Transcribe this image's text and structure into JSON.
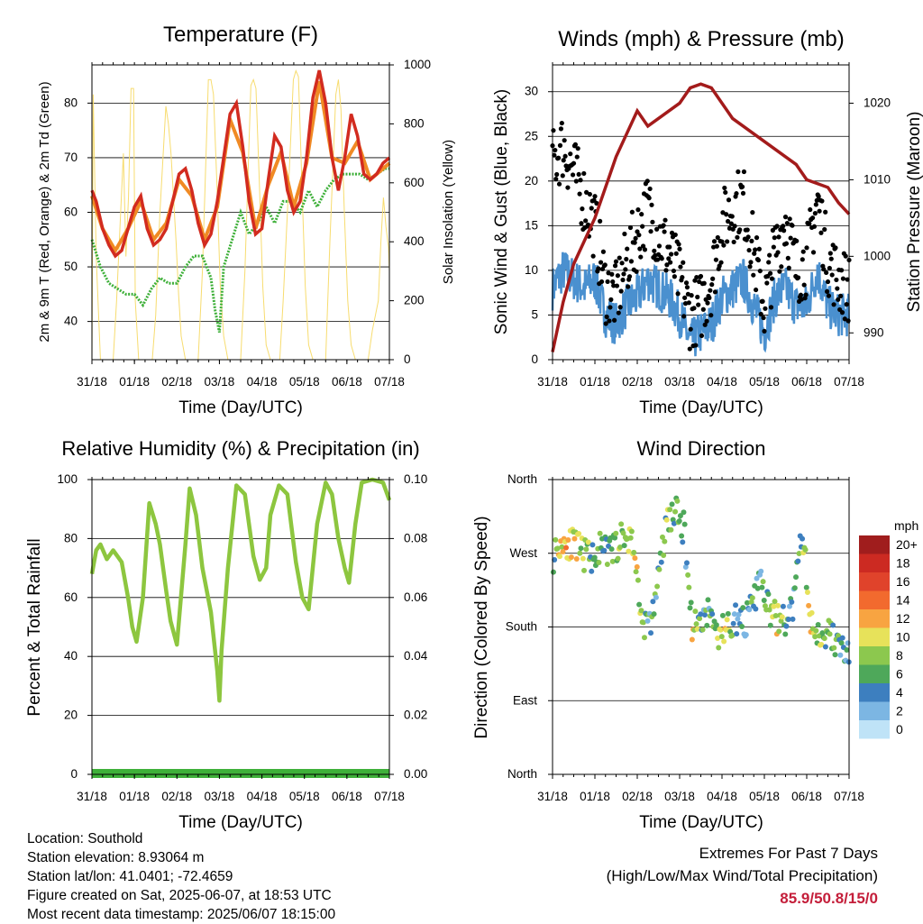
{
  "chart_data": [
    {
      "type": "line",
      "title": "Temperature (F)",
      "xlabel": "Time (Day/UTC)",
      "ylabel": "2m & 9m T (Red, Orange) & 2m Td (Green)",
      "y2label": "Solar Insolation (Yellow)",
      "x_ticks": [
        "31/18",
        "01/18",
        "02/18",
        "03/18",
        "04/18",
        "05/18",
        "06/18",
        "07/18"
      ],
      "ylim": [
        33,
        87
      ],
      "y_ticks": [
        40,
        50,
        60,
        70,
        80
      ],
      "y2lim": [
        0,
        1000
      ],
      "y2_ticks": [
        0,
        200,
        400,
        600,
        800,
        1000
      ],
      "grid": true,
      "colors": {
        "t2m": "#d22b1f",
        "t9m": "#f08a24",
        "td2m": "#3fb03a",
        "solar": "#f7dc6f"
      },
      "series": [
        {
          "key": "t2m",
          "x": [
            0,
            0.1,
            0.25,
            0.4,
            0.55,
            0.7,
            0.85,
            1,
            1.15,
            1.3,
            1.45,
            1.6,
            1.75,
            1.9,
            2.05,
            2.2,
            2.35,
            2.5,
            2.65,
            2.8,
            2.95,
            3.1,
            3.25,
            3.4,
            3.55,
            3.7,
            3.85,
            4,
            4.15,
            4.3,
            4.45,
            4.6,
            4.75,
            4.9,
            5.05,
            5.2,
            5.35,
            5.5,
            5.65,
            5.8,
            5.95,
            6.1,
            6.25,
            6.4,
            6.55,
            6.7,
            6.85,
            7
          ],
          "values": [
            64,
            62,
            57,
            54,
            52,
            53,
            57,
            61,
            63,
            57,
            54,
            55,
            57,
            62,
            67,
            68,
            64,
            58,
            54,
            56,
            62,
            70,
            78,
            80,
            72,
            62,
            56,
            57,
            66,
            74,
            72,
            64,
            60,
            62,
            70,
            81,
            86,
            80,
            70,
            64,
            70,
            78,
            74,
            67,
            66,
            67,
            69,
            70
          ]
        },
        {
          "key": "t9m",
          "x": [
            0,
            0.25,
            0.55,
            0.85,
            1.15,
            1.45,
            1.75,
            2.05,
            2.35,
            2.65,
            2.95,
            3.25,
            3.55,
            3.85,
            4.15,
            4.45,
            4.75,
            5.05,
            5.35,
            5.65,
            5.95,
            6.25,
            6.55,
            6.85,
            7
          ],
          "values": [
            63,
            57,
            53,
            57,
            62,
            55,
            58,
            66,
            63,
            55,
            61,
            77,
            71,
            57,
            65,
            71,
            61,
            69,
            84,
            70,
            69,
            73,
            66,
            68,
            69
          ]
        },
        {
          "key": "td2m",
          "x": [
            0,
            0.2,
            0.4,
            0.6,
            0.8,
            1,
            1.2,
            1.4,
            1.6,
            1.8,
            2,
            2.2,
            2.4,
            2.6,
            2.8,
            2.9,
            3,
            3.1,
            3.3,
            3.5,
            3.7,
            3.9,
            4.1,
            4.3,
            4.5,
            4.7,
            4.9,
            5.1,
            5.3,
            5.5,
            5.7,
            5.9,
            6.1,
            6.3,
            6.5,
            6.7,
            6.9,
            7
          ],
          "values": [
            55,
            50,
            47,
            46,
            45,
            45,
            43,
            46,
            48,
            47,
            47,
            50,
            52,
            52,
            48,
            42,
            38,
            50,
            55,
            60,
            56,
            58,
            61,
            58,
            62,
            62,
            60,
            64,
            61,
            64,
            66,
            67,
            67,
            67,
            66,
            67,
            68,
            68
          ]
        },
        {
          "key": "solar",
          "x": [
            0,
            0.03,
            0.1,
            0.2,
            0.26,
            0.34,
            0.4,
            0.5,
            0.58,
            0.74,
            0.8,
            0.86,
            0.92,
            0.98,
            1.02,
            1.1,
            1.2,
            1.26,
            1.34,
            1.42,
            1.5,
            1.6,
            1.74,
            1.8,
            1.86,
            1.92,
            1.98,
            2.04,
            2.1,
            2.2,
            2.26,
            2.34,
            2.42,
            2.5,
            2.6,
            2.74,
            2.8,
            2.86,
            2.94,
            3.02,
            3.1,
            3.2,
            3.26,
            3.34,
            3.42,
            3.5,
            3.6,
            3.74,
            3.8,
            3.86,
            3.94,
            4.02,
            4.1,
            4.2,
            4.26,
            4.34,
            4.42,
            4.5,
            4.6,
            4.74,
            4.8,
            4.86,
            4.94,
            5.02,
            5.1,
            5.2,
            5.26,
            5.34,
            5.42,
            5.5,
            5.6,
            5.74,
            5.8,
            5.86,
            5.94,
            6.02,
            6.1,
            6.2,
            6.26,
            6.34,
            6.42,
            6.5,
            6.6,
            6.74,
            6.8,
            6.86,
            6.92,
            6.98,
            7
          ],
          "values": [
            0,
            900,
            350,
            0,
            0,
            0,
            0,
            0,
            200,
            700,
            350,
            550,
            920,
            920,
            200,
            0,
            0,
            0,
            0,
            0,
            150,
            500,
            860,
            800,
            700,
            550,
            400,
            220,
            80,
            0,
            0,
            0,
            0,
            0,
            300,
            950,
            950,
            900,
            600,
            250,
            80,
            0,
            0,
            0,
            0,
            0,
            300,
            930,
            950,
            920,
            600,
            250,
            50,
            0,
            0,
            0,
            0,
            200,
            500,
            950,
            980,
            960,
            600,
            250,
            50,
            0,
            0,
            0,
            0,
            0,
            400,
            900,
            950,
            850,
            500,
            200,
            50,
            0,
            0,
            0,
            0,
            0,
            100,
            200,
            400,
            550,
            450,
            380,
            300
          ]
        }
      ]
    },
    {
      "type": "scatter",
      "title": "Winds (mph) & Pressure (mb)",
      "xlabel": "Time (Day/UTC)",
      "ylabel": "Sonic Wind & Gust (Blue, Black)",
      "y2label": "Station Pressure (Maroon)",
      "x_ticks": [
        "31/18",
        "01/18",
        "02/18",
        "03/18",
        "04/18",
        "05/18",
        "06/18",
        "07/18"
      ],
      "ylim": [
        0,
        33
      ],
      "y_ticks": [
        0,
        5,
        10,
        15,
        20,
        25,
        30
      ],
      "y2lim": [
        986.5,
        1025
      ],
      "y2_ticks": [
        990,
        1000,
        1010,
        1020
      ],
      "grid": true,
      "colors": {
        "wind": "#4a90cf",
        "gust": "#000000",
        "pressure": "#a31b1b"
      },
      "series": [
        {
          "key": "wind",
          "x": [
            0,
            0.25,
            0.5,
            0.75,
            1,
            1.25,
            1.5,
            1.75,
            2,
            2.25,
            2.5,
            2.75,
            3,
            3.25,
            3.5,
            3.75,
            4,
            4.25,
            4.5,
            4.75,
            5,
            5.25,
            5.5,
            5.75,
            6,
            6.25,
            6.5,
            6.75,
            7
          ],
          "values": [
            8,
            10,
            9,
            8,
            9,
            5,
            4,
            6,
            7,
            9,
            8,
            7,
            5,
            2,
            3,
            4,
            7,
            8,
            9,
            6,
            3,
            7,
            8,
            6,
            6,
            10,
            6,
            5,
            5
          ]
        },
        {
          "key": "gust",
          "x": [
            0,
            0.25,
            0.5,
            0.75,
            1,
            1.25,
            1.5,
            1.75,
            2,
            2.25,
            2.5,
            2.75,
            3,
            3.25,
            3.5,
            3.75,
            4,
            4.25,
            4.5,
            4.75,
            5,
            5.25,
            5.5,
            5.75,
            6,
            6.25,
            6.5,
            6.75,
            7
          ],
          "values": [
            22,
            24,
            21,
            18,
            15,
            8,
            7,
            11,
            14,
            17,
            14,
            12,
            9,
            5,
            6,
            9,
            15,
            17,
            18,
            12,
            6,
            12,
            16,
            10,
            11,
            18,
            11,
            9,
            8
          ]
        },
        {
          "key": "pressure",
          "x": [
            0,
            0.25,
            0.5,
            0.75,
            1,
            1.25,
            1.5,
            1.75,
            2,
            2.25,
            2.5,
            2.75,
            3,
            3.25,
            3.5,
            3.75,
            4,
            4.25,
            4.5,
            4.75,
            5,
            5.25,
            5.5,
            5.75,
            6,
            6.25,
            6.5,
            6.75,
            7
          ],
          "values": [
            987.5,
            994,
            999,
            1002,
            1005,
            1009,
            1013,
            1016,
            1019,
            1017,
            1018,
            1019,
            1020,
            1022,
            1022.5,
            1022,
            1020,
            1018,
            1017,
            1016,
            1015,
            1014,
            1013,
            1012,
            1010,
            1009.5,
            1009,
            1007,
            1005.5
          ]
        }
      ]
    },
    {
      "type": "line",
      "title": "Relative Humidity (%) & Precipitation (in)",
      "xlabel": "Time (Day/UTC)",
      "ylabel": "Percent & Total Rainfall",
      "x_ticks": [
        "31/18",
        "01/18",
        "02/18",
        "03/18",
        "04/18",
        "05/18",
        "06/18",
        "07/18"
      ],
      "ylim": [
        0,
        100
      ],
      "y_ticks": [
        0,
        20,
        40,
        60,
        80,
        100
      ],
      "y2lim": [
        0,
        0.1
      ],
      "y2_ticks": [
        "0.00",
        "0.02",
        "0.04",
        "0.06",
        "0.08",
        "0.10"
      ],
      "grid": true,
      "colors": {
        "rh": "#8dc63f",
        "precip": "#3fb03a"
      },
      "series": [
        {
          "key": "rh",
          "x": [
            0,
            0.1,
            0.2,
            0.35,
            0.5,
            0.7,
            0.85,
            0.95,
            1.05,
            1.2,
            1.35,
            1.5,
            1.6,
            1.75,
            1.85,
            2,
            2.2,
            2.3,
            2.45,
            2.6,
            2.8,
            2.95,
            3,
            3.05,
            3.2,
            3.4,
            3.6,
            3.8,
            3.95,
            4.1,
            4.2,
            4.4,
            4.6,
            4.8,
            4.95,
            5.1,
            5.3,
            5.5,
            5.65,
            5.8,
            5.95,
            6.05,
            6.2,
            6.35,
            6.6,
            6.85,
            7
          ],
          "values": [
            68,
            76,
            78,
            73,
            76,
            72,
            60,
            50,
            45,
            60,
            92,
            85,
            78,
            62,
            52,
            44,
            78,
            97,
            88,
            70,
            55,
            35,
            25,
            42,
            70,
            98,
            95,
            74,
            66,
            70,
            88,
            98,
            95,
            72,
            60,
            56,
            85,
            99,
            95,
            80,
            70,
            65,
            85,
            99,
            100,
            99,
            93
          ]
        },
        {
          "key": "precip",
          "x": [
            0,
            7
          ],
          "values": [
            0,
            0
          ]
        }
      ]
    },
    {
      "type": "scatter",
      "title": "Wind Direction",
      "xlabel": "Time (Day/UTC)",
      "ylabel": "Direction (Colored By Speed)",
      "x_ticks": [
        "31/18",
        "01/18",
        "02/18",
        "03/18",
        "04/18",
        "05/18",
        "06/18",
        "07/18"
      ],
      "y_tick_labels": [
        "North",
        "East",
        "South",
        "West",
        "North"
      ],
      "ylim": [
        0,
        360
      ],
      "grid": true,
      "legend": {
        "title": "mph",
        "labels": [
          "20+",
          "18",
          "16",
          "14",
          "12",
          "10",
          "8",
          "6",
          "4",
          "2",
          "0"
        ],
        "colors": [
          "#a01d1d",
          "#cc2a22",
          "#e0432b",
          "#f26a2e",
          "#f8a441",
          "#e7e25a",
          "#8cc84e",
          "#4ea85a",
          "#3d7fbf",
          "#7cb6e3",
          "#bfe3f7"
        ]
      },
      "series": [
        {
          "key": "direction",
          "x": [
            0,
            0.15,
            0.3,
            0.5,
            0.7,
            0.9,
            1.1,
            1.3,
            1.5,
            1.7,
            1.9,
            2.1,
            2.3,
            2.5,
            2.7,
            2.9,
            3.1,
            3.3,
            3.5,
            3.7,
            3.9,
            4.1,
            4.3,
            4.5,
            4.7,
            4.9,
            5.1,
            5.3,
            5.5,
            5.7,
            5.9,
            6.1,
            6.3,
            6.5,
            6.7,
            6.9,
            7
          ],
          "values": [
            265,
            280,
            285,
            280,
            270,
            265,
            275,
            270,
            280,
            290,
            285,
            190,
            180,
            240,
            310,
            320,
            300,
            180,
            190,
            200,
            170,
            180,
            190,
            185,
            200,
            240,
            200,
            190,
            185,
            210,
            300,
            180,
            170,
            175,
            160,
            150,
            140
          ],
          "speed": [
            6,
            10,
            12,
            10,
            8,
            6,
            6,
            6,
            8,
            8,
            10,
            8,
            4,
            6,
            8,
            6,
            4,
            10,
            6,
            4,
            8,
            10,
            4,
            4,
            6,
            4,
            8,
            10,
            6,
            4,
            6,
            10,
            8,
            6,
            6,
            4,
            4
          ]
        }
      ]
    }
  ],
  "info": {
    "location": "Location: Southold",
    "elevation": "Station elevation: 8.93064 m",
    "latlon": "Station lat/lon: 41.0401; -72.4659",
    "created": "Figure created on Sat, 2025-06-07, at 18:53 UTC",
    "recent": "Most recent data timestamp: 2025/06/07 18:15:00"
  },
  "extremes": {
    "title": "Extremes For Past 7 Days",
    "subtitle": "(High/Low/Max Wind/Total Precipitation)",
    "values": "85.9/50.8/15/0"
  }
}
